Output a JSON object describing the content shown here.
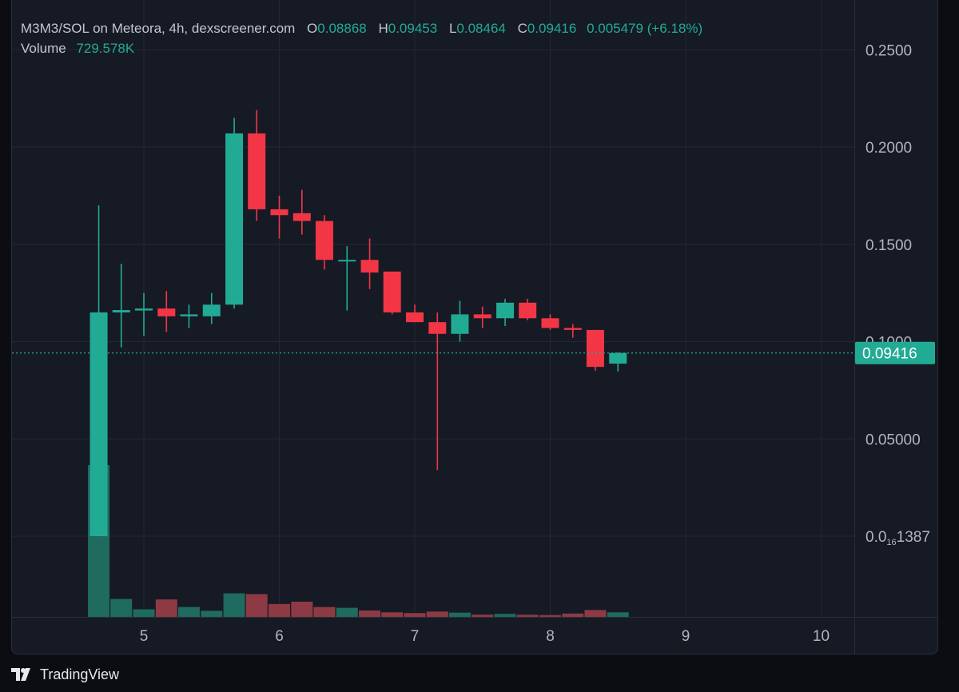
{
  "header": {
    "symbol_line": "M3M3/SOL on Meteora, 4h, dexscreener.com",
    "open_key": "O",
    "open": "0.08868",
    "high_key": "H",
    "high": "0.09453",
    "low_key": "L",
    "low": "0.08464",
    "close_key": "C",
    "close": "0.09416",
    "change": "0.005479 (+6.18%)",
    "volume_label": "Volume",
    "volume": "729.578K"
  },
  "price_axis": {
    "ticks": [
      {
        "value": 0.25,
        "label": "0.2500"
      },
      {
        "value": 0.2,
        "label": "0.2000"
      },
      {
        "value": 0.15,
        "label": "0.1500"
      },
      {
        "value": 0.1,
        "label": "0.1000"
      },
      {
        "value": 0.05,
        "label": "0.05000"
      },
      {
        "value": 0.0,
        "label_main": "0.0",
        "label_sub": "16",
        "label_tail": "1387"
      }
    ],
    "last_price_label": "0.09416"
  },
  "time_axis": {
    "ticks": [
      {
        "value": 5,
        "label": "5"
      },
      {
        "value": 6,
        "label": "6"
      },
      {
        "value": 7,
        "label": "7"
      },
      {
        "value": 8,
        "label": "8"
      },
      {
        "value": 9,
        "label": "9"
      },
      {
        "value": 10,
        "label": "10"
      }
    ]
  },
  "chart_data": {
    "type": "candlestick",
    "interval": "4h",
    "x_unit": "day",
    "ylim": [
      0,
      0.2575
    ],
    "xlim": [
      4.02,
      10.25
    ],
    "last_price": 0.09416,
    "colors": {
      "up": "#22ab94",
      "down": "#f23645",
      "up_volume": "#1f6b5f",
      "down_volume": "#8e3a45"
    },
    "candles": [
      {
        "t": 4.667,
        "o": 0.0,
        "h": 0.17,
        "l": 0.0,
        "c": 0.115,
        "v": 1.0
      },
      {
        "t": 4.833,
        "o": 0.115,
        "h": 0.14,
        "l": 0.097,
        "c": 0.1162,
        "v": 0.118
      },
      {
        "t": 5.0,
        "o": 0.116,
        "h": 0.125,
        "l": 0.103,
        "c": 0.117,
        "v": 0.05
      },
      {
        "t": 5.167,
        "o": 0.117,
        "h": 0.126,
        "l": 0.105,
        "c": 0.113,
        "v": 0.115
      },
      {
        "t": 5.333,
        "o": 0.113,
        "h": 0.119,
        "l": 0.107,
        "c": 0.114,
        "v": 0.065
      },
      {
        "t": 5.5,
        "o": 0.113,
        "h": 0.125,
        "l": 0.109,
        "c": 0.119,
        "v": 0.04
      },
      {
        "t": 5.667,
        "o": 0.119,
        "h": 0.215,
        "l": 0.117,
        "c": 0.207,
        "v": 0.155
      },
      {
        "t": 5.833,
        "o": 0.207,
        "h": 0.219,
        "l": 0.162,
        "c": 0.168,
        "v": 0.15
      },
      {
        "t": 6.0,
        "o": 0.168,
        "h": 0.175,
        "l": 0.153,
        "c": 0.165,
        "v": 0.085
      },
      {
        "t": 6.167,
        "o": 0.166,
        "h": 0.178,
        "l": 0.155,
        "c": 0.162,
        "v": 0.1
      },
      {
        "t": 6.333,
        "o": 0.162,
        "h": 0.165,
        "l": 0.137,
        "c": 0.142,
        "v": 0.065
      },
      {
        "t": 6.5,
        "o": 0.142,
        "h": 0.149,
        "l": 0.116,
        "c": 0.142,
        "v": 0.06
      },
      {
        "t": 6.667,
        "o": 0.142,
        "h": 0.153,
        "l": 0.127,
        "c": 0.1355,
        "v": 0.042
      },
      {
        "t": 6.833,
        "o": 0.136,
        "h": 0.136,
        "l": 0.114,
        "c": 0.115,
        "v": 0.03
      },
      {
        "t": 7.0,
        "o": 0.115,
        "h": 0.119,
        "l": 0.11,
        "c": 0.11,
        "v": 0.025
      },
      {
        "t": 7.167,
        "o": 0.11,
        "h": 0.115,
        "l": 0.034,
        "c": 0.104,
        "v": 0.035
      },
      {
        "t": 7.333,
        "o": 0.104,
        "h": 0.121,
        "l": 0.1,
        "c": 0.114,
        "v": 0.028
      },
      {
        "t": 7.5,
        "o": 0.114,
        "h": 0.118,
        "l": 0.107,
        "c": 0.112,
        "v": 0.015
      },
      {
        "t": 7.667,
        "o": 0.112,
        "h": 0.122,
        "l": 0.108,
        "c": 0.12,
        "v": 0.02
      },
      {
        "t": 7.833,
        "o": 0.12,
        "h": 0.122,
        "l": 0.111,
        "c": 0.112,
        "v": 0.014
      },
      {
        "t": 8.0,
        "o": 0.112,
        "h": 0.114,
        "l": 0.106,
        "c": 0.107,
        "v": 0.012
      },
      {
        "t": 8.167,
        "o": 0.107,
        "h": 0.109,
        "l": 0.102,
        "c": 0.106,
        "v": 0.022
      },
      {
        "t": 8.333,
        "o": 0.106,
        "h": 0.106,
        "l": 0.085,
        "c": 0.087,
        "v": 0.045
      },
      {
        "t": 8.5,
        "o": 0.08868,
        "h": 0.09453,
        "l": 0.08464,
        "c": 0.09416,
        "v": 0.03
      }
    ]
  }
}
